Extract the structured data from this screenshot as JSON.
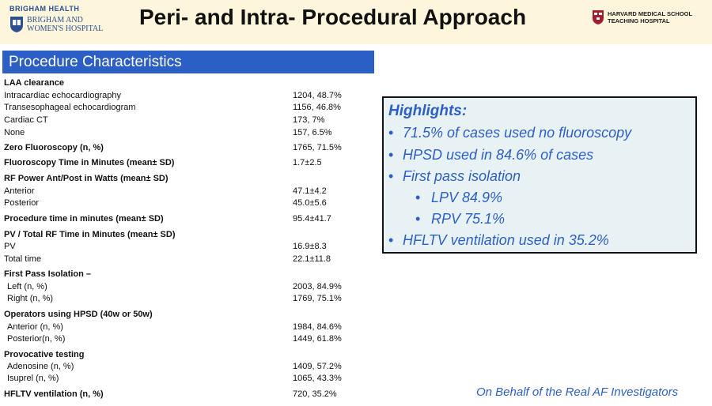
{
  "header": {
    "brigham_health": "BRIGHAM HEALTH",
    "hospital_line1": "BRIGHAM AND",
    "hospital_line2": "WOMEN'S HOSPITAL",
    "title": "Peri- and Intra- Procedural Approach",
    "hms_line1": "HARVARD MEDICAL SCHOOL",
    "hms_line2": "TEACHING HOSPITAL"
  },
  "procedure": {
    "heading": "Procedure Characteristics",
    "rows": [
      {
        "label": "LAA clearance",
        "value": ""
      },
      {
        "label": "Intracardiac echocardiography",
        "value": "1204, 48.7%"
      },
      {
        "label": "Transesophageal echocardiogram",
        "value": "1156, 46.8%"
      },
      {
        "label": "Cardiac CT",
        "value": "173, 7%"
      },
      {
        "label": "None",
        "value": "157, 6.5%"
      },
      {
        "label": "Zero Fluoroscopy (n, %)",
        "value": "1765, 71.5%"
      },
      {
        "label": "Fluoroscopy Time in Minutes (mean± SD)",
        "value": "1.7±2.5"
      },
      {
        "label": "RF Power Ant/Post in Watts (mean± SD)",
        "value": ""
      },
      {
        "label": "Anterior",
        "value": "47.1±4.2"
      },
      {
        "label": "Posterior",
        "value": "45.0±5.6"
      },
      {
        "label": "Procedure time in minutes (mean± SD)",
        "value": "95.4±41.7"
      },
      {
        "label": "PV / Total RF Time in Minutes (mean± SD)",
        "value": ""
      },
      {
        "label": "PV",
        "value": "16.9±8.3"
      },
      {
        "label": "Total time",
        "value": "22.1±11.8"
      },
      {
        "label": "First Pass Isolation –",
        "value": ""
      },
      {
        "label": "Left (n, %)",
        "value": "2003, 84.9%"
      },
      {
        "label": "Right (n, %)",
        "value": "1769, 75.1%"
      },
      {
        "label": "Operators using HPSD (40w or 50w)",
        "value": ""
      },
      {
        "label": "Anterior (n, %)",
        "value": "1984, 84.6%"
      },
      {
        "label": "Posterior(n, %)",
        "value": "1449, 61.8%"
      },
      {
        "label": "Provocative testing",
        "value": ""
      },
      {
        "label": "Adenosine (n, %)",
        "value": "1409, 57.2%"
      },
      {
        "label": "Isuprel (n, %)",
        "value": "1065, 43.3%"
      },
      {
        "label": "HFLTV ventilation (n, %)",
        "value": "720, 35.2%"
      }
    ]
  },
  "highlights": {
    "title": "Highlights:",
    "items": [
      "71.5% of cases used no fluoroscopy",
      "HPSD used in 84.6% of cases",
      "First pass isolation",
      "LPV 84.9%",
      "RPV 75.1%",
      "HFLTV ventilation used in 35.2%"
    ]
  },
  "footer": "On Behalf of the Real AF Investigators",
  "colors": {
    "accent": "#2c5fc5",
    "header_bg": "#fdf6dc",
    "highlight_bg": "#e8f2f5"
  }
}
